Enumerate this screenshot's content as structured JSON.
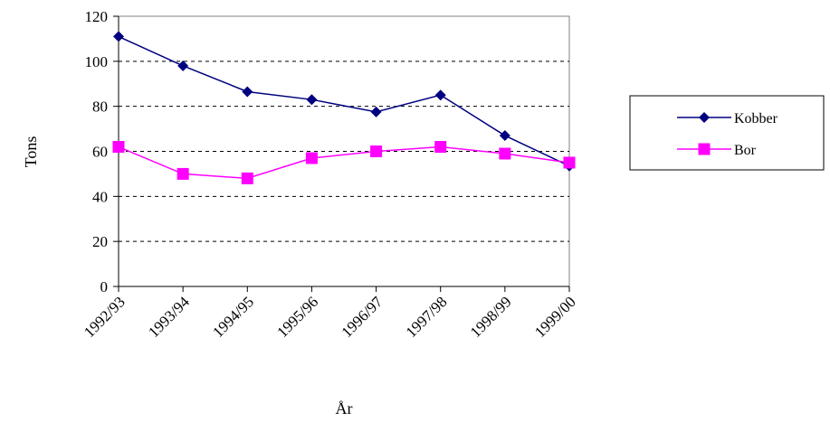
{
  "chart_data": {
    "type": "line",
    "title": "",
    "xlabel": "År",
    "ylabel": "Tons",
    "categories": [
      "1992/93",
      "1993/94",
      "1994/95",
      "1995/96",
      "1996/97",
      "1997/98",
      "1998/99",
      "1999/00"
    ],
    "ylim": [
      0,
      120
    ],
    "yticks": [
      0,
      20,
      40,
      60,
      80,
      100,
      120
    ],
    "grid": "horizontal-dashed",
    "legend_position": "right",
    "series": [
      {
        "name": "Kobber",
        "color": "#000080",
        "marker": "diamond",
        "values": [
          111,
          98,
          86.5,
          83,
          77.5,
          85,
          67,
          53.5
        ]
      },
      {
        "name": "Bor",
        "color": "#FF00FF",
        "marker": "square",
        "values": [
          62,
          50,
          48,
          57,
          60,
          62,
          59,
          55
        ]
      }
    ]
  }
}
